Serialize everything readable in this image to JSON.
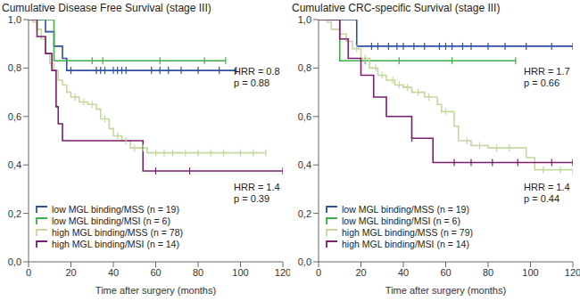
{
  "chart_data": [
    {
      "type": "line",
      "line_style": "step",
      "title": "Cumulative Disease Free Survival (stage III)",
      "x_label": "Time after surgery (months)",
      "xlim": [
        0,
        120
      ],
      "xticks": [
        0,
        20,
        40,
        60,
        80,
        100,
        120
      ],
      "ylim": [
        0,
        1
      ],
      "yticks": [
        {
          "value": 0,
          "label": "0,0"
        },
        {
          "value": 0.2,
          "label": "0,2"
        },
        {
          "value": 0.4,
          "label": "0,4"
        },
        {
          "value": 0.6,
          "label": "0,6"
        },
        {
          "value": 0.8,
          "label": "0,8"
        },
        {
          "value": 1,
          "label": "1,0"
        }
      ],
      "legend": "lower left",
      "annotations": [
        [
          "HRR = 0.8",
          "p = 0.88"
        ],
        [
          "HRR = 1.4",
          "p = 0.39"
        ]
      ],
      "series": [
        {
          "name": "low MGL binding/MSS (n = 19)",
          "color": "#2f4fa3",
          "x": [
            0,
            8,
            12,
            16,
            18,
            98
          ],
          "values": [
            1,
            0.95,
            0.89,
            0.84,
            0.79,
            0.79
          ],
          "censored": [
            20,
            32,
            34,
            36,
            40,
            42,
            44,
            46,
            58,
            62,
            66,
            72,
            80,
            90,
            98
          ]
        },
        {
          "name": "low MGL binding/MSI (n = 6)",
          "color": "#3fae49",
          "x": [
            0,
            12,
            93
          ],
          "values": [
            1,
            0.83,
            0.83
          ],
          "censored": [
            30,
            35,
            62,
            83,
            93
          ]
        },
        {
          "name": "high MGL binding/MSS (n = 78)",
          "color": "#c3d89d",
          "x": [
            0,
            2,
            4,
            6,
            8,
            10,
            12,
            14,
            16,
            18,
            20,
            24,
            28,
            32,
            34,
            38,
            40,
            44,
            48,
            56,
            112
          ],
          "values": [
            1,
            0.99,
            0.96,
            0.92,
            0.86,
            0.82,
            0.79,
            0.75,
            0.73,
            0.7,
            0.68,
            0.66,
            0.65,
            0.63,
            0.59,
            0.55,
            0.52,
            0.5,
            0.47,
            0.45,
            0.45
          ],
          "censored": [
            22,
            26,
            30,
            36,
            42,
            46,
            50,
            54,
            60,
            64,
            68,
            74,
            80,
            86,
            92,
            100,
            106,
            112
          ]
        },
        {
          "name": "high MGL binding/MSI (n = 14)",
          "color": "#7a1f6c",
          "x": [
            0,
            4,
            8,
            11,
            13,
            14,
            16,
            54,
            120
          ],
          "values": [
            1,
            0.93,
            0.86,
            0.79,
            0.64,
            0.57,
            0.5,
            0.375,
            0.375
          ],
          "censored": [
            60,
            76,
            120
          ]
        }
      ]
    },
    {
      "type": "line",
      "line_style": "step",
      "title": "Cumulative CRC-specific Survival (stage III)",
      "x_label": "Time after surgery (months)",
      "xlim": [
        0,
        120
      ],
      "xticks": [
        0,
        20,
        40,
        60,
        80,
        100,
        120
      ],
      "ylim": [
        0,
        1
      ],
      "yticks": [
        {
          "value": 0,
          "label": "0,0"
        },
        {
          "value": 0.2,
          "label": "0,2"
        },
        {
          "value": 0.4,
          "label": "0,4"
        },
        {
          "value": 0.6,
          "label": "0,6"
        },
        {
          "value": 0.8,
          "label": "0,8"
        },
        {
          "value": 1,
          "label": "1,0"
        }
      ],
      "legend": "lower left",
      "annotations": [
        [
          "HRR = 1.7",
          "p = 0.66"
        ],
        [
          "HRR = 1.4",
          "p = 0.44"
        ]
      ],
      "series": [
        {
          "name": "low MGL binding/MSS (n = 19)",
          "color": "#2f4fa3",
          "x": [
            0,
            18,
            120
          ],
          "values": [
            1,
            0.89,
            0.89
          ],
          "censored": [
            25,
            28,
            33,
            37,
            40,
            45,
            50,
            57,
            60,
            63,
            68,
            72,
            80,
            88,
            98,
            110,
            120
          ]
        },
        {
          "name": "low MGL binding/MSI (n = 6)",
          "color": "#3fae49",
          "x": [
            0,
            10,
            93
          ],
          "values": [
            1,
            0.83,
            0.83
          ],
          "censored": [
            22,
            38,
            63,
            93
          ]
        },
        {
          "name": "high MGL binding/MSS (n = 79)",
          "color": "#c3d89d",
          "x": [
            0,
            4,
            6,
            10,
            13,
            16,
            20,
            24,
            28,
            32,
            36,
            40,
            44,
            50,
            56,
            58,
            64,
            66,
            72,
            80,
            98,
            102,
            120
          ],
          "values": [
            1,
            0.99,
            0.96,
            0.94,
            0.91,
            0.88,
            0.84,
            0.8,
            0.77,
            0.75,
            0.73,
            0.72,
            0.7,
            0.68,
            0.65,
            0.62,
            0.56,
            0.5,
            0.48,
            0.47,
            0.43,
            0.38,
            0.37
          ],
          "censored": [
            18,
            22,
            27,
            30,
            35,
            38,
            42,
            47,
            52,
            60,
            70,
            76,
            84,
            90,
            106,
            114,
            120
          ]
        },
        {
          "name": "high MGL binding/MSI (n = 14)",
          "color": "#7a1f6c",
          "x": [
            0,
            10,
            14,
            20,
            26,
            32,
            44,
            54,
            120
          ],
          "values": [
            1,
            0.92,
            0.84,
            0.77,
            0.68,
            0.6,
            0.51,
            0.41,
            0.41
          ],
          "censored": [
            44,
            64,
            72,
            82,
            94,
            110,
            120
          ]
        }
      ]
    }
  ]
}
